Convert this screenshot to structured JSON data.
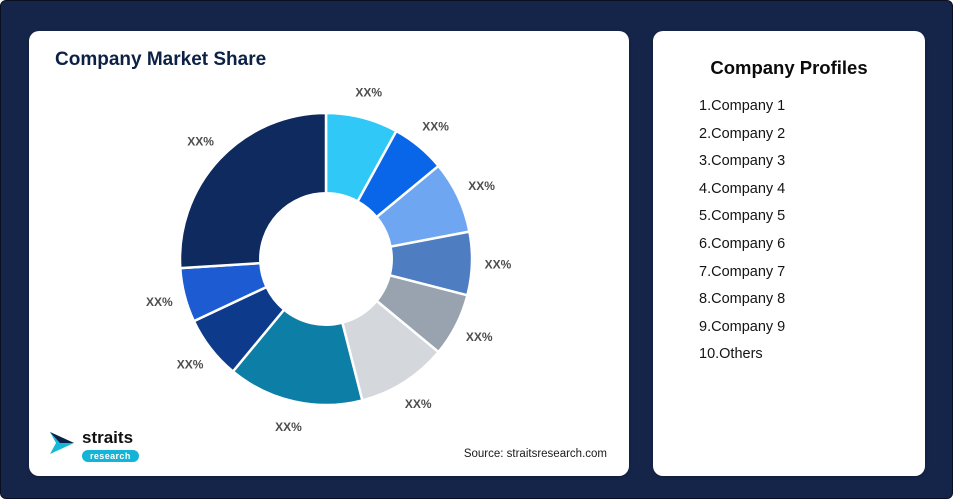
{
  "frame": {
    "background": "#152549"
  },
  "chart_data": {
    "type": "pie",
    "subtype": "donut",
    "title": "Company Market Share",
    "source": "Source: straitsresearch.com",
    "categories": [
      "Company 1",
      "Company 2",
      "Company 3",
      "Company 4",
      "Company 5",
      "Company 6",
      "Company 7",
      "Company 8",
      "Company 9",
      "Others"
    ],
    "values": [
      8,
      6,
      8,
      7,
      7,
      10,
      15,
      7,
      6,
      26
    ],
    "labels": [
      "XX%",
      "XX%",
      "XX%",
      "XX%",
      "XX%",
      "XX%",
      "XX%",
      "XX%",
      "XX%",
      "XX%"
    ],
    "colors": [
      "#2FC8F7",
      "#0A66E8",
      "#6FA6F2",
      "#4E7DC2",
      "#99A3AF",
      "#D4D8DD",
      "#0D7EA6",
      "#0E3A8C",
      "#1C5BD2",
      "#0E2A5E"
    ],
    "start_angle": 0,
    "direction": "clockwise",
    "inner_radius_ratio": 0.45,
    "legend": "none",
    "grid": false
  },
  "logo": {
    "name": "straits",
    "sub": "research",
    "accent": "#14b4d6"
  },
  "profiles": {
    "title": "Company Profiles",
    "items": [
      "1.Company 1",
      "2.Company 2",
      "3.Company 3",
      "4.Company 4",
      "5.Company 5",
      "6.Company 6",
      "7.Company 7",
      "8.Company 8",
      "9.Company 9",
      "10.Others"
    ]
  }
}
